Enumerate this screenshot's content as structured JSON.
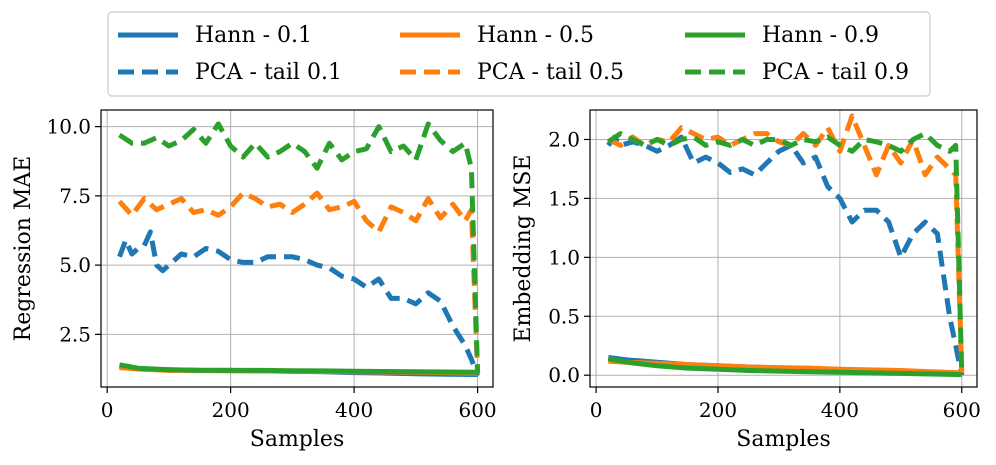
{
  "legend": {
    "entries": [
      {
        "label": "Hann - 0.1",
        "color": "#1f77b4",
        "style": "solid"
      },
      {
        "label": "PCA - tail 0.1",
        "color": "#1f77b4",
        "style": "dashed"
      },
      {
        "label": "Hann - 0.5",
        "color": "#ff7f0e",
        "style": "solid"
      },
      {
        "label": "PCA - tail 0.5",
        "color": "#ff7f0e",
        "style": "dashed"
      },
      {
        "label": "Hann - 0.9",
        "color": "#2ca02c",
        "style": "solid"
      },
      {
        "label": "PCA - tail 0.9",
        "color": "#2ca02c",
        "style": "dashed"
      }
    ]
  },
  "chart_data": [
    {
      "type": "line",
      "xlabel": "Samples",
      "ylabel": "Regression MAE",
      "xlim": [
        -10,
        625
      ],
      "ylim": [
        0.6,
        10.6
      ],
      "xticks": [
        0,
        200,
        400,
        600
      ],
      "xtick_labels": [
        "0",
        "200",
        "400",
        "600"
      ],
      "yticks": [
        2.5,
        5.0,
        7.5,
        10.0
      ],
      "ytick_labels": [
        "2.5",
        "5.0",
        "7.5",
        "10.0"
      ],
      "grid": true,
      "series": [
        {
          "name": "PCA - tail 0.1",
          "color": "#1f77b4",
          "style": "dashed",
          "x": [
            20,
            30,
            40,
            50,
            60,
            70,
            80,
            90,
            100,
            120,
            140,
            160,
            180,
            200,
            220,
            240,
            260,
            280,
            300,
            320,
            340,
            360,
            380,
            400,
            420,
            440,
            460,
            480,
            500,
            520,
            540,
            560,
            580,
            590,
            600
          ],
          "y": [
            5.3,
            5.9,
            5.4,
            5.6,
            5.7,
            6.2,
            5.0,
            4.8,
            5.0,
            5.4,
            5.3,
            5.6,
            5.5,
            5.2,
            5.1,
            5.1,
            5.3,
            5.3,
            5.3,
            5.2,
            5.0,
            4.9,
            4.6,
            4.5,
            4.2,
            4.5,
            3.8,
            3.8,
            3.6,
            4.0,
            3.7,
            2.8,
            2.1,
            1.6,
            1.0
          ]
        },
        {
          "name": "PCA - tail 0.5",
          "color": "#ff7f0e",
          "style": "dashed",
          "x": [
            20,
            40,
            60,
            80,
            100,
            120,
            140,
            160,
            180,
            200,
            220,
            240,
            260,
            280,
            300,
            320,
            340,
            360,
            380,
            400,
            420,
            440,
            460,
            480,
            500,
            520,
            540,
            560,
            580,
            590,
            600
          ],
          "y": [
            7.3,
            6.8,
            7.4,
            7.0,
            7.2,
            7.4,
            6.9,
            7.0,
            6.8,
            7.1,
            7.6,
            7.4,
            7.1,
            7.2,
            6.9,
            7.2,
            7.6,
            7.0,
            7.1,
            7.3,
            6.6,
            6.2,
            7.1,
            6.9,
            6.6,
            7.4,
            6.7,
            7.2,
            6.6,
            7.0,
            1.1
          ]
        },
        {
          "name": "PCA - tail 0.9",
          "color": "#2ca02c",
          "style": "dashed",
          "x": [
            20,
            40,
            60,
            80,
            100,
            120,
            140,
            160,
            180,
            200,
            220,
            240,
            260,
            280,
            300,
            320,
            340,
            360,
            380,
            400,
            420,
            440,
            460,
            480,
            500,
            520,
            540,
            560,
            580,
            590,
            600
          ],
          "y": [
            9.7,
            9.4,
            9.4,
            9.6,
            9.3,
            9.5,
            9.9,
            9.4,
            10.1,
            9.3,
            8.9,
            9.4,
            8.9,
            9.1,
            9.4,
            9.1,
            8.5,
            9.4,
            8.8,
            9.1,
            9.2,
            10.0,
            9.1,
            9.3,
            8.8,
            10.1,
            9.5,
            9.1,
            9.4,
            8.5,
            1.1
          ]
        },
        {
          "name": "Hann - 0.1",
          "color": "#1f77b4",
          "style": "solid",
          "x": [
            20,
            50,
            100,
            150,
            200,
            250,
            300,
            350,
            400,
            450,
            500,
            550,
            600
          ],
          "y": [
            1.35,
            1.25,
            1.22,
            1.2,
            1.2,
            1.18,
            1.17,
            1.15,
            1.12,
            1.1,
            1.08,
            1.06,
            1.05
          ]
        },
        {
          "name": "Hann - 0.5",
          "color": "#ff7f0e",
          "style": "solid",
          "x": [
            20,
            50,
            100,
            150,
            200,
            250,
            300,
            350,
            400,
            450,
            500,
            550,
            600
          ],
          "y": [
            1.3,
            1.25,
            1.2,
            1.2,
            1.18,
            1.18,
            1.17,
            1.16,
            1.15,
            1.14,
            1.13,
            1.12,
            1.1
          ]
        },
        {
          "name": "Hann - 0.9",
          "color": "#2ca02c",
          "style": "solid",
          "x": [
            20,
            50,
            100,
            150,
            200,
            250,
            300,
            350,
            400,
            450,
            500,
            550,
            600
          ],
          "y": [
            1.4,
            1.28,
            1.22,
            1.2,
            1.2,
            1.2,
            1.19,
            1.18,
            1.17,
            1.16,
            1.15,
            1.14,
            1.13
          ]
        }
      ]
    },
    {
      "type": "line",
      "xlabel": "Samples",
      "ylabel": "Embedding MSE",
      "xlim": [
        -10,
        625
      ],
      "ylim": [
        -0.1,
        2.25
      ],
      "xticks": [
        0,
        200,
        400,
        600
      ],
      "xtick_labels": [
        "0",
        "200",
        "400",
        "600"
      ],
      "yticks": [
        0.0,
        0.5,
        1.0,
        1.5,
        2.0
      ],
      "ytick_labels": [
        "0.0",
        "0.5",
        "1.0",
        "1.5",
        "2.0"
      ],
      "grid": true,
      "series": [
        {
          "name": "PCA - tail 0.1",
          "color": "#1f77b4",
          "style": "dashed",
          "x": [
            20,
            30,
            40,
            60,
            80,
            100,
            120,
            140,
            160,
            180,
            200,
            220,
            240,
            260,
            280,
            300,
            320,
            340,
            360,
            380,
            400,
            420,
            440,
            460,
            480,
            500,
            520,
            540,
            560,
            580,
            600
          ],
          "y": [
            1.95,
            2.02,
            1.95,
            1.98,
            1.95,
            1.9,
            1.95,
            2.02,
            1.8,
            1.85,
            1.8,
            1.72,
            1.75,
            1.7,
            1.8,
            1.9,
            1.95,
            1.8,
            1.85,
            1.6,
            1.5,
            1.3,
            1.4,
            1.4,
            1.3,
            1.0,
            1.2,
            1.3,
            1.2,
            0.5,
            0.0
          ]
        },
        {
          "name": "PCA - tail 0.5",
          "color": "#ff7f0e",
          "style": "dashed",
          "x": [
            20,
            40,
            60,
            80,
            100,
            120,
            140,
            160,
            180,
            200,
            220,
            240,
            260,
            280,
            300,
            320,
            340,
            360,
            380,
            400,
            420,
            440,
            460,
            480,
            500,
            520,
            540,
            560,
            580,
            590,
            600
          ],
          "y": [
            2.0,
            1.95,
            2.02,
            1.95,
            2.0,
            1.98,
            2.1,
            2.05,
            2.0,
            2.02,
            1.95,
            2.0,
            2.05,
            2.05,
            1.98,
            1.95,
            2.05,
            1.95,
            2.1,
            1.9,
            2.2,
            1.95,
            1.7,
            1.95,
            1.8,
            2.0,
            1.7,
            1.85,
            1.75,
            1.7,
            0.02
          ]
        },
        {
          "name": "PCA - tail 0.9",
          "color": "#2ca02c",
          "style": "dashed",
          "x": [
            20,
            40,
            60,
            80,
            100,
            120,
            140,
            160,
            180,
            200,
            220,
            240,
            260,
            280,
            300,
            320,
            340,
            360,
            380,
            400,
            420,
            440,
            460,
            480,
            500,
            520,
            540,
            560,
            580,
            590,
            600
          ],
          "y": [
            1.98,
            2.05,
            2.0,
            1.95,
            2.0,
            1.95,
            2.0,
            2.02,
            1.95,
            1.98,
            1.95,
            2.0,
            1.95,
            2.0,
            2.0,
            1.95,
            2.0,
            1.98,
            2.02,
            1.95,
            1.9,
            2.0,
            1.98,
            1.95,
            1.9,
            2.0,
            2.05,
            1.95,
            1.9,
            1.95,
            0.0
          ]
        },
        {
          "name": "Hann - 0.1",
          "color": "#1f77b4",
          "style": "solid",
          "x": [
            20,
            50,
            100,
            150,
            200,
            250,
            300,
            350,
            400,
            450,
            500,
            550,
            600
          ],
          "y": [
            0.15,
            0.13,
            0.11,
            0.09,
            0.08,
            0.07,
            0.06,
            0.05,
            0.045,
            0.035,
            0.03,
            0.02,
            0.01
          ]
        },
        {
          "name": "Hann - 0.5",
          "color": "#ff7f0e",
          "style": "solid",
          "x": [
            20,
            50,
            100,
            150,
            200,
            250,
            300,
            350,
            400,
            450,
            500,
            550,
            600
          ],
          "y": [
            0.12,
            0.11,
            0.1,
            0.09,
            0.08,
            0.07,
            0.065,
            0.06,
            0.05,
            0.045,
            0.04,
            0.03,
            0.02
          ]
        },
        {
          "name": "Hann - 0.9",
          "color": "#2ca02c",
          "style": "solid",
          "x": [
            20,
            50,
            100,
            150,
            200,
            250,
            300,
            350,
            400,
            450,
            500,
            550,
            600
          ],
          "y": [
            0.14,
            0.11,
            0.08,
            0.06,
            0.05,
            0.04,
            0.035,
            0.03,
            0.025,
            0.02,
            0.015,
            0.01,
            0.005
          ]
        }
      ]
    }
  ]
}
